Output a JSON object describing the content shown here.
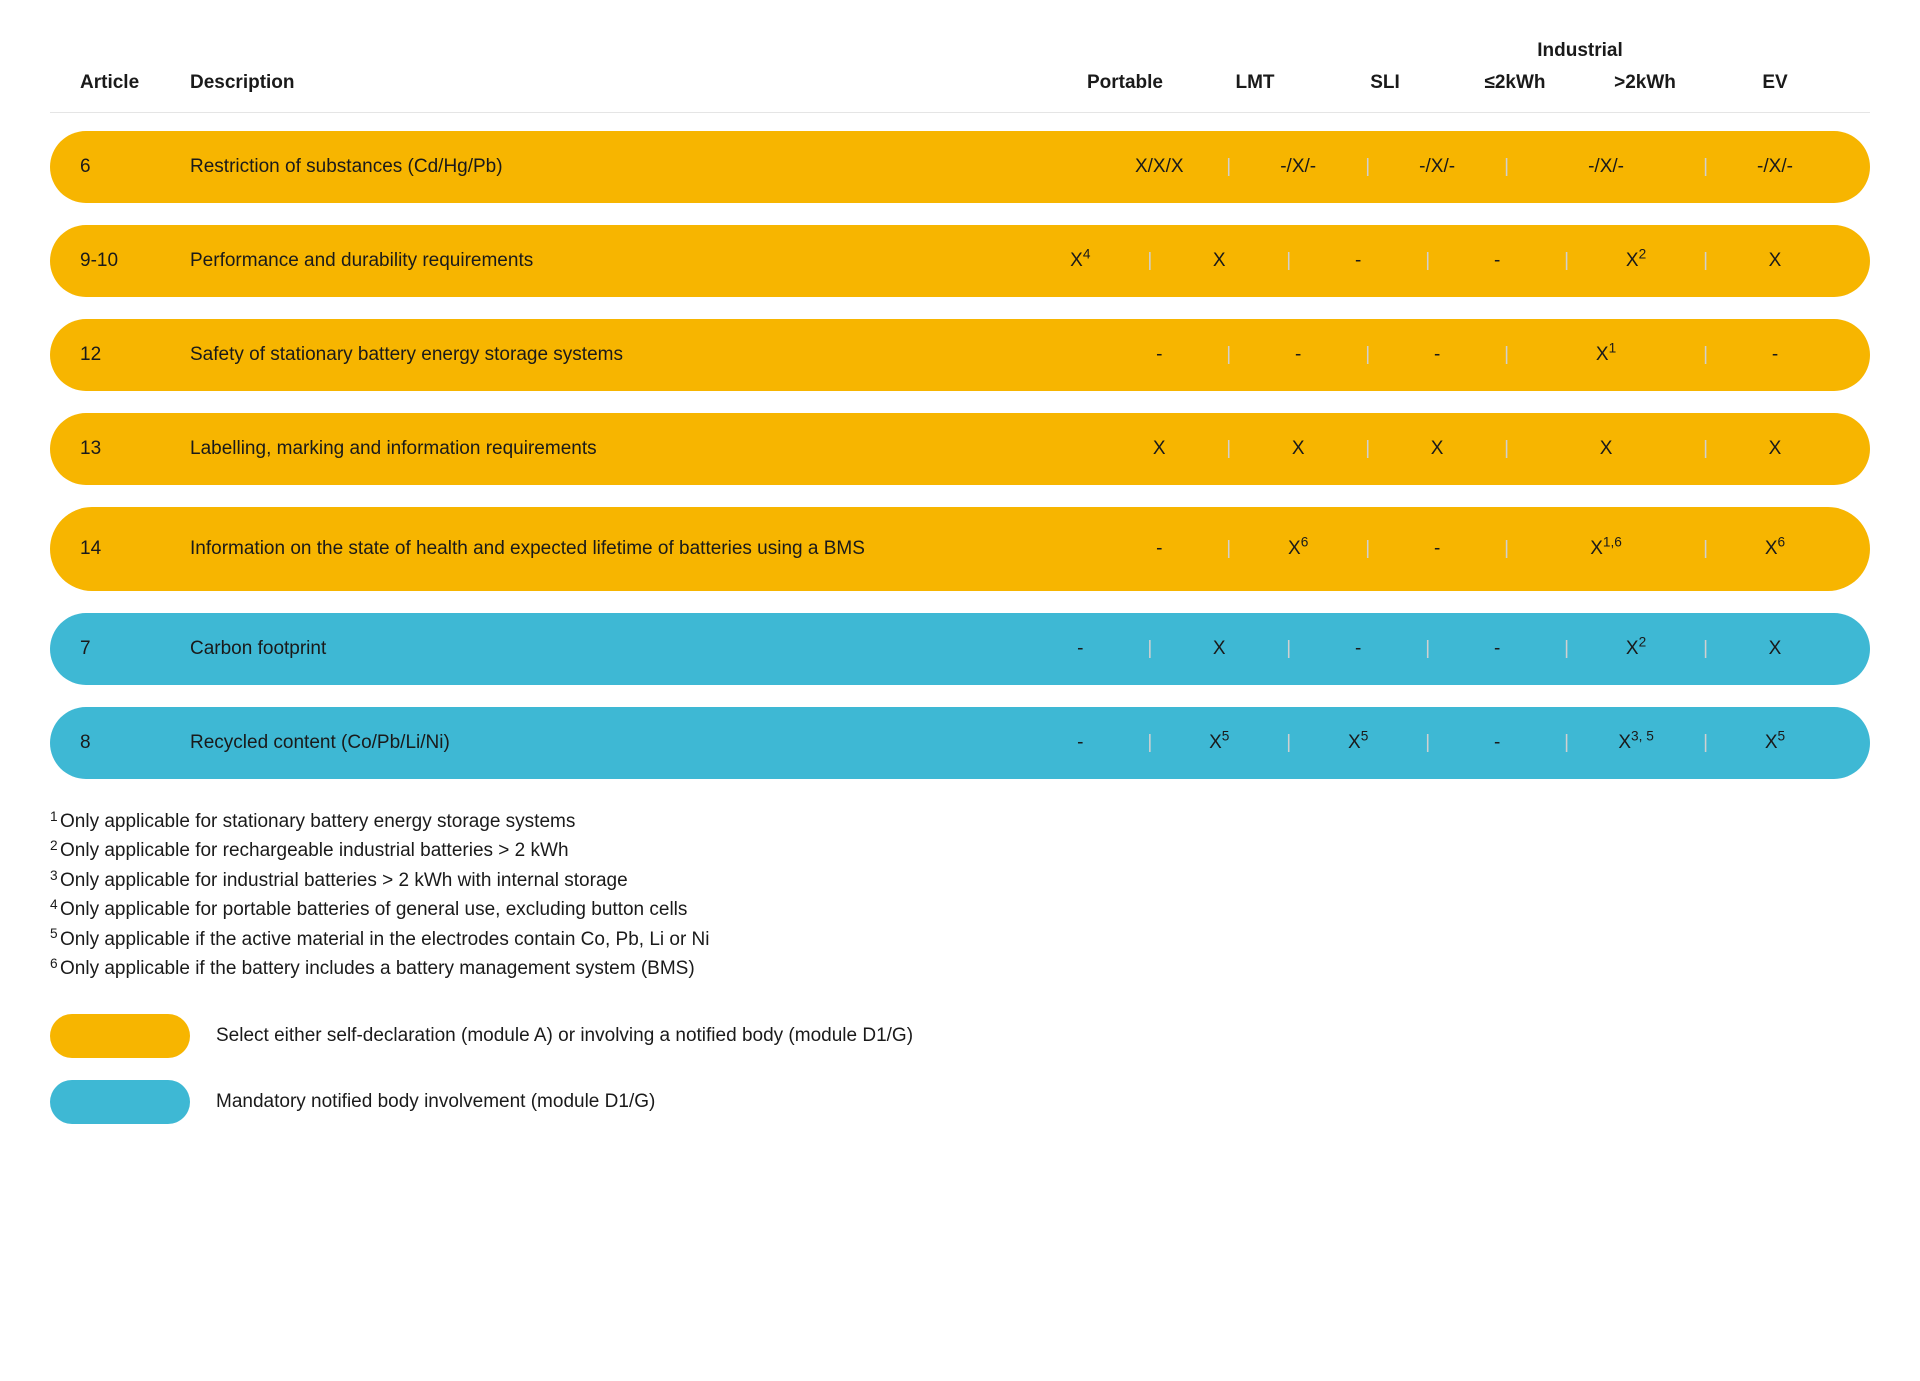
{
  "colors": {
    "yellow": "#f7b500",
    "blue": "#3eb8d4",
    "text": "#1a1a1a",
    "bg": "#ffffff",
    "hr": "#e5e5e5"
  },
  "header": {
    "article": "Article",
    "description": "Description",
    "portable": "Portable",
    "lmt": "LMT",
    "sli": "SLI",
    "industrial": "Industrial",
    "industrial_le": "≤2kWh",
    "industrial_gt": ">2kWh",
    "ev": "EV"
  },
  "rows": [
    {
      "color": "yellow",
      "article": "6",
      "description": "Restriction of substances (Cd/Hg/Pb)",
      "cells": [
        {
          "v": "X/X/X"
        },
        {
          "v": "-/X/-"
        },
        {
          "v": "-/X/-"
        },
        {
          "v": "-/X/-",
          "span": 2
        },
        {
          "v": "-/X/-"
        }
      ]
    },
    {
      "color": "yellow",
      "article": "9-10",
      "description": "Performance and durability requirements",
      "cells": [
        {
          "v": "X",
          "sup": "4"
        },
        {
          "v": "X"
        },
        {
          "v": "-"
        },
        {
          "v": "-"
        },
        {
          "v": "X",
          "sup": "2"
        },
        {
          "v": "X"
        }
      ]
    },
    {
      "color": "yellow",
      "article": "12",
      "description": "Safety of stationary battery energy storage systems",
      "cells": [
        {
          "v": "-"
        },
        {
          "v": "-"
        },
        {
          "v": "-"
        },
        {
          "v": "X",
          "sup": "1",
          "span": 2
        },
        {
          "v": "-"
        }
      ]
    },
    {
      "color": "yellow",
      "article": "13",
      "description": "Labelling, marking and information requirements",
      "cells": [
        {
          "v": "X"
        },
        {
          "v": "X"
        },
        {
          "v": "X"
        },
        {
          "v": "X",
          "span": 2
        },
        {
          "v": "X"
        }
      ]
    },
    {
      "color": "yellow",
      "article": "14",
      "description": "Information on the state of health and expected lifetime of batteries using a BMS",
      "tall": true,
      "cells": [
        {
          "v": "-"
        },
        {
          "v": "X",
          "sup": "6"
        },
        {
          "v": "-"
        },
        {
          "v": "X",
          "sup": "1,6",
          "span": 2
        },
        {
          "v": "X",
          "sup": "6"
        }
      ]
    },
    {
      "color": "blue",
      "article": "7",
      "description": "Carbon footprint",
      "cells": [
        {
          "v": "-"
        },
        {
          "v": "X"
        },
        {
          "v": "-"
        },
        {
          "v": "-"
        },
        {
          "v": "X",
          "sup": "2"
        },
        {
          "v": "X"
        }
      ]
    },
    {
      "color": "blue",
      "article": "8",
      "description": "Recycled content (Co/Pb/Li/Ni)",
      "cells": [
        {
          "v": "-"
        },
        {
          "v": "X",
          "sup": "5"
        },
        {
          "v": "X",
          "sup": "5"
        },
        {
          "v": "-"
        },
        {
          "v": "X",
          "sup": "3, 5"
        },
        {
          "v": "X",
          "sup": "5"
        }
      ]
    }
  ],
  "footnotes": [
    {
      "n": "1",
      "t": "Only applicable for stationary battery energy storage systems"
    },
    {
      "n": "2",
      "t": "Only applicable for rechargeable industrial batteries > 2 kWh"
    },
    {
      "n": "3",
      "t": "Only applicable for industrial batteries > 2 kWh with internal storage"
    },
    {
      "n": "4",
      "t": "Only applicable for portable batteries of general use, excluding button cells"
    },
    {
      "n": "5",
      "t": "Only applicable if the active material in the electrodes contain Co, Pb, Li or Ni"
    },
    {
      "n": "6",
      "t": "Only applicable if the battery includes a battery management system (BMS)"
    }
  ],
  "legend": [
    {
      "color": "yellow",
      "label": "Select either self-declaration (module A) or involving a notified body (module D1/G)"
    },
    {
      "color": "blue",
      "label": "Mandatory notified body involvement (module D1/G)"
    }
  ]
}
